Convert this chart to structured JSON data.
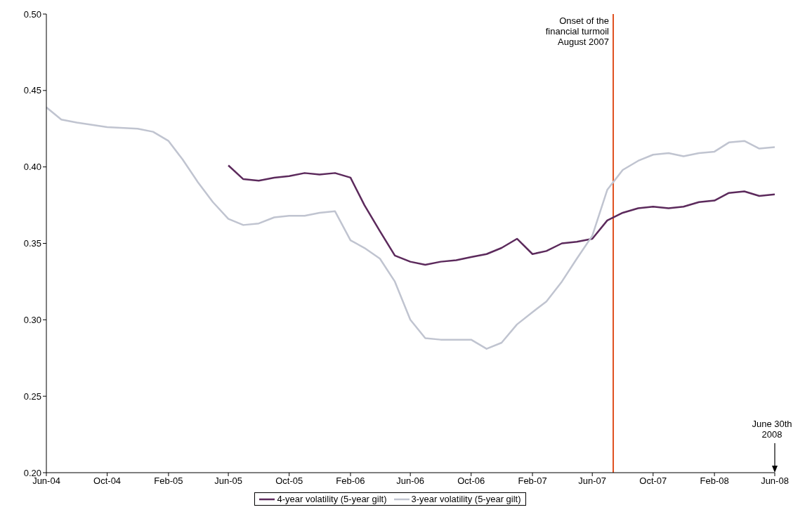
{
  "chart_data": {
    "type": "line",
    "x": [
      "2004-06",
      "2004-07",
      "2004-08",
      "2004-10",
      "2004-12",
      "2005-01",
      "2005-02",
      "2005-03",
      "2005-04",
      "2005-05",
      "2005-06",
      "2005-07",
      "2005-08",
      "2005-09",
      "2005-10",
      "2005-11",
      "2005-12",
      "2006-01",
      "2006-02",
      "2006-03",
      "2006-04",
      "2006-05",
      "2006-06",
      "2006-07",
      "2006-08",
      "2006-09",
      "2006-10",
      "2006-11",
      "2006-12",
      "2007-01",
      "2007-02",
      "2007-03",
      "2007-04",
      "2007-05",
      "2007-06",
      "2007-07",
      "2007-08",
      "2007-09",
      "2007-10",
      "2007-11",
      "2007-12",
      "2008-01",
      "2008-02",
      "2008-03",
      "2008-04",
      "2008-05",
      "2008-06"
    ],
    "series": [
      {
        "name": "4-year volatility (5-year gilt)",
        "color": "#5c2a5c",
        "values": [
          null,
          null,
          null,
          null,
          null,
          null,
          null,
          null,
          null,
          null,
          0.401,
          0.392,
          0.391,
          0.393,
          0.394,
          0.396,
          0.395,
          0.396,
          0.393,
          0.375,
          0.358,
          0.342,
          0.338,
          0.336,
          0.338,
          0.339,
          0.341,
          0.343,
          0.347,
          0.353,
          0.343,
          0.345,
          0.35,
          0.351,
          0.353,
          0.365,
          0.37,
          0.373,
          0.374,
          0.373,
          0.374,
          0.377,
          0.378,
          0.383,
          0.384,
          0.381,
          0.382
        ]
      },
      {
        "name": "3-year volatility (5-year gilt)",
        "color": "#c0c4d0",
        "values": [
          0.439,
          0.431,
          0.429,
          0.426,
          0.425,
          0.423,
          0.417,
          0.405,
          0.39,
          0.377,
          0.366,
          0.362,
          0.363,
          0.367,
          0.368,
          0.368,
          0.37,
          0.371,
          0.352,
          0.347,
          0.34,
          0.325,
          0.3,
          0.288,
          0.287,
          0.287,
          0.287,
          0.281,
          0.285,
          0.297,
          0.305,
          0.312,
          0.325,
          0.34,
          0.355,
          0.385,
          0.398,
          0.404,
          0.408,
          0.409,
          0.407,
          0.409,
          0.41,
          0.416,
          0.417,
          0.412,
          0.413
        ]
      }
    ],
    "xlim": [
      "2004-06",
      "2008-06"
    ],
    "xticks": [
      {
        "value": "2004-06",
        "label": "Jun-04"
      },
      {
        "value": "2004-10",
        "label": "Oct-04"
      },
      {
        "value": "2005-02",
        "label": "Feb-05"
      },
      {
        "value": "2005-06",
        "label": "Jun-05"
      },
      {
        "value": "2005-10",
        "label": "Oct-05"
      },
      {
        "value": "2006-02",
        "label": "Feb-06"
      },
      {
        "value": "2006-06",
        "label": "Jun-06"
      },
      {
        "value": "2006-10",
        "label": "Oct-06"
      },
      {
        "value": "2007-02",
        "label": "Feb-07"
      },
      {
        "value": "2007-06",
        "label": "Jun-07"
      },
      {
        "value": "2007-10",
        "label": "Oct-07"
      },
      {
        "value": "2008-02",
        "label": "Feb-08"
      },
      {
        "value": "2008-06",
        "label": "Jun-08"
      }
    ],
    "ylim": [
      0.2,
      0.5
    ],
    "yticks": [
      {
        "value": 0.2,
        "label": "0.20"
      },
      {
        "value": 0.25,
        "label": "0.25"
      },
      {
        "value": 0.3,
        "label": "0.30"
      },
      {
        "value": 0.35,
        "label": "0.35"
      },
      {
        "value": 0.4,
        "label": "0.40"
      },
      {
        "value": 0.45,
        "label": "0.45"
      },
      {
        "value": 0.5,
        "label": "0.50"
      }
    ],
    "ref_lines": [
      {
        "axis": "x",
        "value": "2007-07-13",
        "label": "Onset of the\nfinancial turmoil\nAugust 2007",
        "color": "#e0501e"
      }
    ],
    "annotations": [
      "June 30th\n2008"
    ],
    "grid": false,
    "legend": "bottom",
    "marker": "none",
    "line_style": "solid"
  }
}
